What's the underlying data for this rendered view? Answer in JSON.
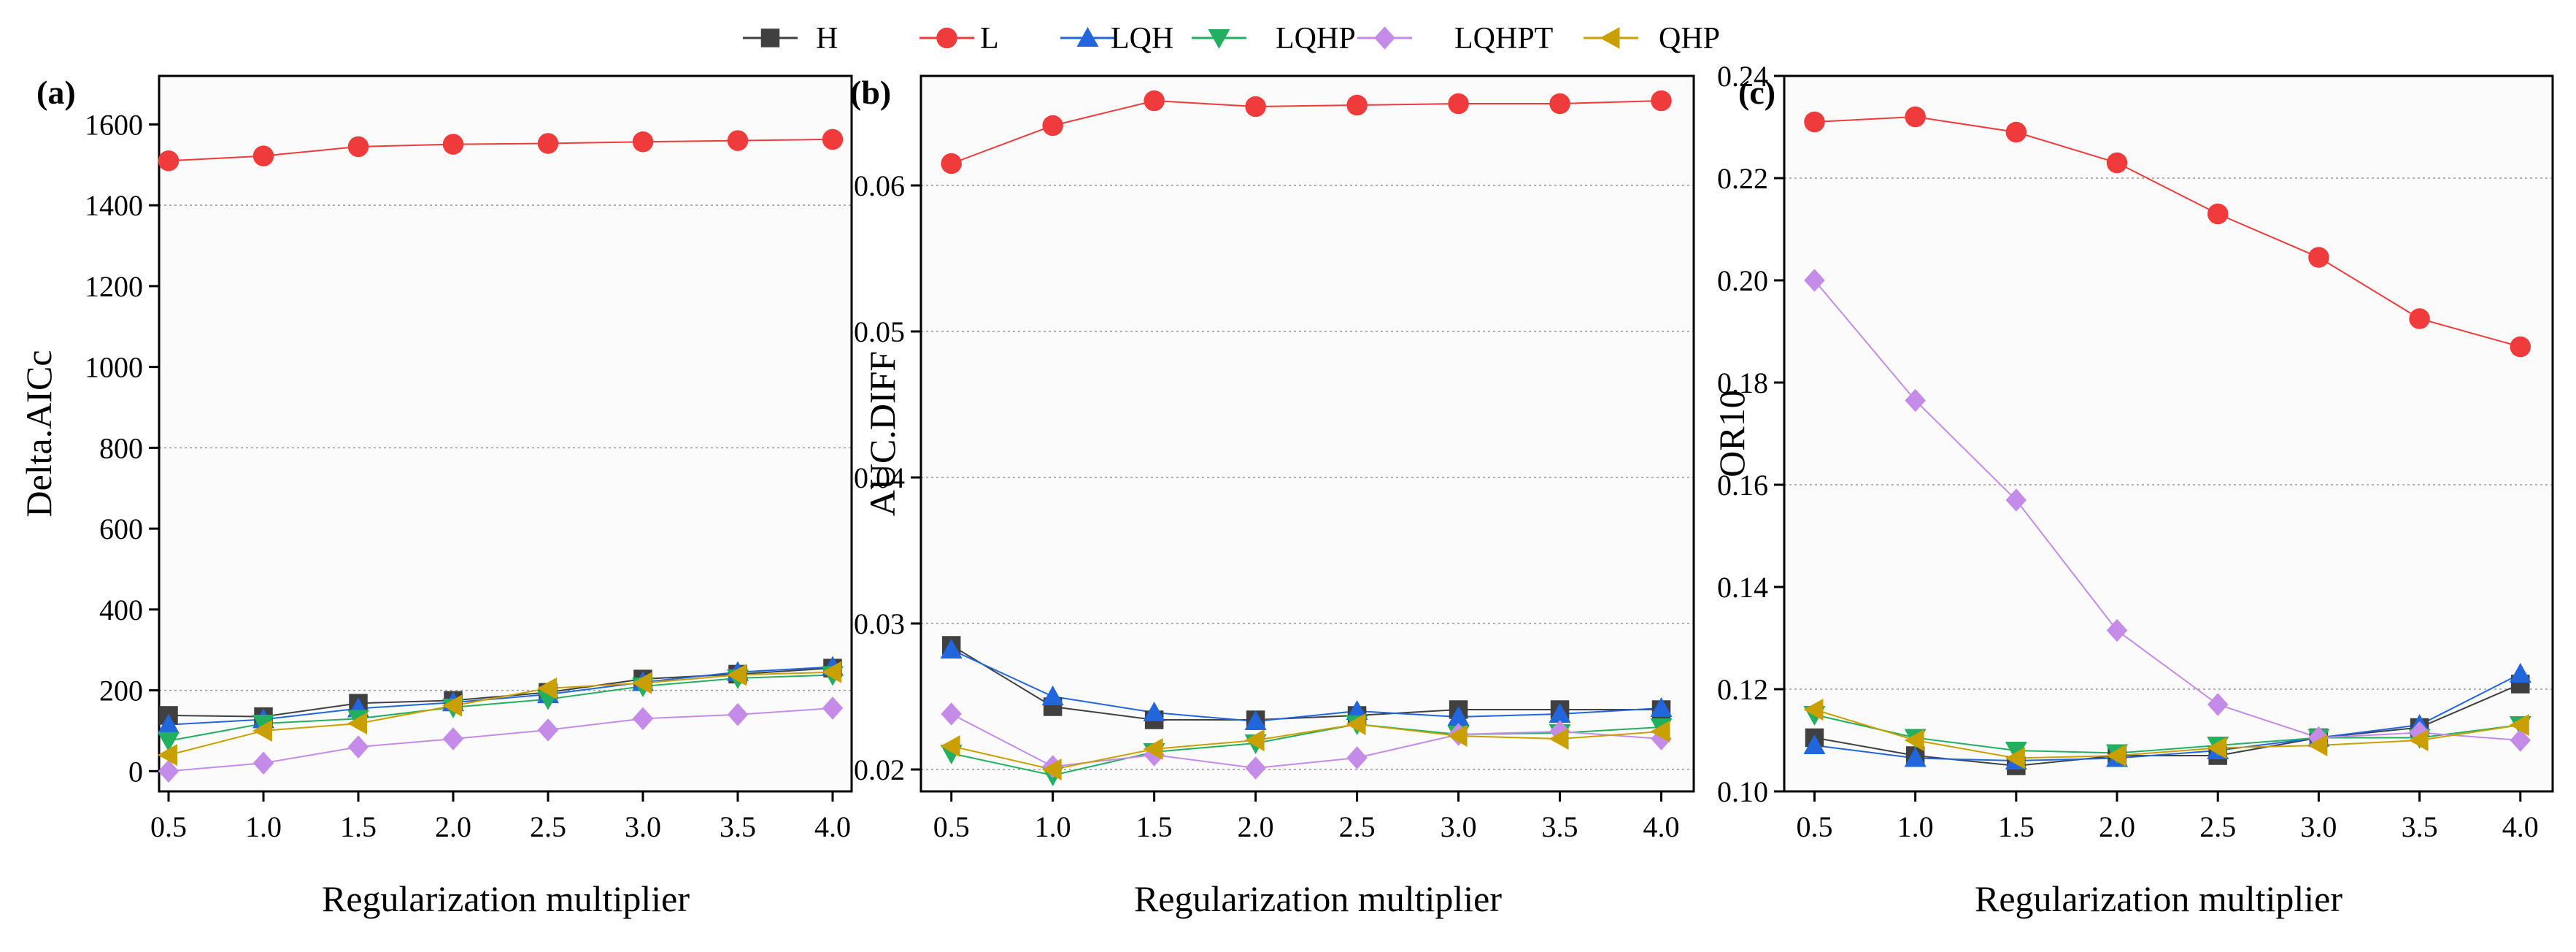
{
  "legend": [
    {
      "name": "H",
      "color": "#404040",
      "marker": "square"
    },
    {
      "name": "L",
      "color": "#ef3b3b",
      "marker": "circle"
    },
    {
      "name": "LQH",
      "color": "#2266dd",
      "marker": "triangle-up"
    },
    {
      "name": "LQHP",
      "color": "#22b060",
      "marker": "triangle-down"
    },
    {
      "name": "LQHPT",
      "color": "#c58be8",
      "marker": "diamond"
    },
    {
      "name": "QHP",
      "color": "#c9a000",
      "marker": "triangle-left"
    }
  ],
  "chart_data": [
    {
      "type": "line",
      "panel_label": "(a)",
      "xlabel": "Regularization multiplier",
      "ylabel": "Delta.AICc",
      "x": [
        0.5,
        1.0,
        1.5,
        2.0,
        2.5,
        3.0,
        3.5,
        4.0
      ],
      "xticks": [
        "0.5",
        "1.0",
        "1.5",
        "2.0",
        "2.5",
        "3.0",
        "3.5",
        "4.0"
      ],
      "ylim": [
        -50,
        1720
      ],
      "yticks": [
        0,
        200,
        400,
        600,
        800,
        1000,
        1200,
        1400,
        1600
      ],
      "ytick_labels": [
        "0",
        "200",
        "400",
        "600",
        "800",
        "1000",
        "1200",
        "1400",
        "1600"
      ],
      "gridlines": [
        200,
        800,
        1400
      ],
      "series": [
        {
          "name": "H",
          "values": [
            138,
            135,
            168,
            175,
            195,
            228,
            240,
            255
          ]
        },
        {
          "name": "L",
          "values": [
            1510,
            1522,
            1545,
            1551,
            1553,
            1557,
            1560,
            1563
          ]
        },
        {
          "name": "LQH",
          "values": [
            115,
            128,
            155,
            170,
            190,
            220,
            245,
            258
          ]
        },
        {
          "name": "LQHP",
          "values": [
            75,
            118,
            130,
            158,
            178,
            210,
            230,
            238
          ]
        },
        {
          "name": "LQHPT",
          "values": [
            0,
            20,
            60,
            80,
            102,
            130,
            140,
            156
          ]
        },
        {
          "name": "QHP",
          "values": [
            40,
            100,
            118,
            162,
            205,
            218,
            238,
            245
          ]
        }
      ]
    },
    {
      "type": "line",
      "panel_label": "(b)",
      "xlabel": "Regularization multiplier",
      "ylabel": "AUC.DIFF",
      "x": [
        0.5,
        1.0,
        1.5,
        2.0,
        2.5,
        3.0,
        3.5,
        4.0
      ],
      "xticks": [
        "0.5",
        "1.0",
        "1.5",
        "2.0",
        "2.5",
        "3.0",
        "3.5",
        "4.0"
      ],
      "ylim": [
        0.0185,
        0.0675
      ],
      "yticks": [
        0.02,
        0.03,
        0.04,
        0.05,
        0.06
      ],
      "ytick_labels": [
        "0.02",
        "0.03",
        "0.04",
        "0.05",
        "0.06"
      ],
      "gridlines": [
        0.02,
        0.03,
        0.04,
        0.05,
        0.06
      ],
      "series": [
        {
          "name": "H",
          "values": [
            0.0285,
            0.0243,
            0.0234,
            0.0234,
            0.0237,
            0.0241,
            0.0241,
            0.0241
          ]
        },
        {
          "name": "L",
          "values": [
            0.0615,
            0.0641,
            0.0658,
            0.0654,
            0.0655,
            0.0656,
            0.0656,
            0.0658
          ]
        },
        {
          "name": "LQH",
          "values": [
            0.0282,
            0.025,
            0.0239,
            0.0233,
            0.024,
            0.0236,
            0.0238,
            0.0242
          ]
        },
        {
          "name": "LQHP",
          "values": [
            0.0211,
            0.0196,
            0.0212,
            0.0218,
            0.0231,
            0.0224,
            0.0225,
            0.0229
          ]
        },
        {
          "name": "LQHPT",
          "values": [
            0.0238,
            0.0202,
            0.021,
            0.0201,
            0.0208,
            0.0224,
            0.0226,
            0.0221
          ]
        },
        {
          "name": "QHP",
          "values": [
            0.0216,
            0.02,
            0.0214,
            0.022,
            0.0231,
            0.0223,
            0.0221,
            0.0226
          ]
        }
      ]
    },
    {
      "type": "line",
      "panel_label": "(c)",
      "xlabel": "Regularization multiplier",
      "ylabel": "OR10",
      "x": [
        0.5,
        1.0,
        1.5,
        2.0,
        2.5,
        3.0,
        3.5,
        4.0
      ],
      "xticks": [
        "0.5",
        "1.0",
        "1.5",
        "2.0",
        "2.5",
        "3.0",
        "3.5",
        "4.0"
      ],
      "ylim": [
        0.1,
        0.24
      ],
      "yticks": [
        0.1,
        0.12,
        0.14,
        0.16,
        0.18,
        0.2,
        0.22,
        0.24
      ],
      "ytick_labels": [
        "0.10",
        "0.12",
        "0.14",
        "0.16",
        "0.18",
        "0.20",
        "0.22",
        "0.24"
      ],
      "gridlines": [
        0.12,
        0.16,
        0.22
      ],
      "series": [
        {
          "name": "H",
          "values": [
            0.1105,
            0.107,
            0.105,
            0.107,
            0.107,
            0.1105,
            0.1125,
            0.121
          ]
        },
        {
          "name": "L",
          "values": [
            0.231,
            0.232,
            0.229,
            0.223,
            0.213,
            0.2045,
            0.1925,
            0.187
          ]
        },
        {
          "name": "LQH",
          "values": [
            0.109,
            0.1065,
            0.106,
            0.1065,
            0.108,
            0.1105,
            0.113,
            0.123
          ]
        },
        {
          "name": "LQHP",
          "values": [
            0.115,
            0.1105,
            0.108,
            0.1075,
            0.109,
            0.1105,
            0.1105,
            0.113
          ]
        },
        {
          "name": "LQHPT",
          "values": [
            0.2,
            0.1765,
            0.157,
            0.1315,
            0.117,
            0.1105,
            0.1115,
            0.11
          ]
        },
        {
          "name": "QHP",
          "values": [
            0.116,
            0.11,
            0.1065,
            0.107,
            0.1085,
            0.109,
            0.11,
            0.113
          ]
        }
      ]
    }
  ]
}
